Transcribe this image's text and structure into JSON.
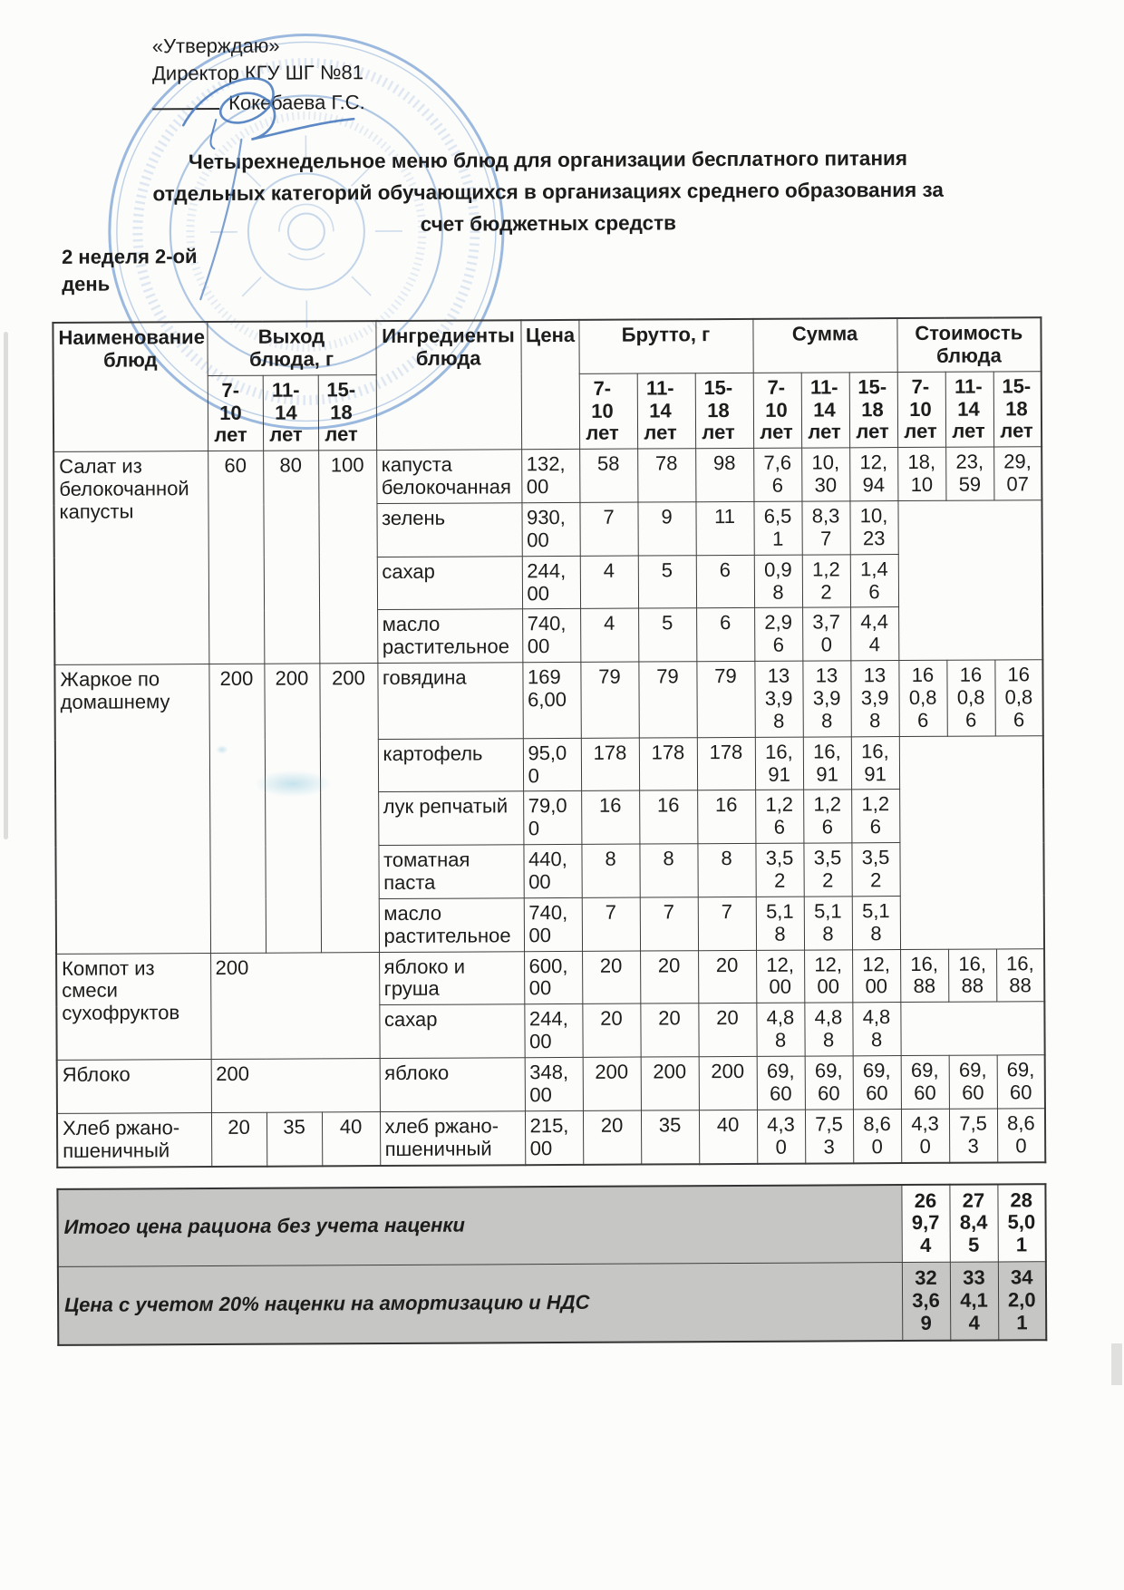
{
  "approval": {
    "quote": "«Утверждаю»",
    "director": "Директор КГУ ШГ №81",
    "signer": "Кокебаева Г.С."
  },
  "title": "Четырехнедельное меню блюд для организации бесплатного питания отдельных категорий обучающихся в организациях среднего образования за счет бюджетных средств",
  "week_day": "2 неделя 2-ой день",
  "table": {
    "headers": {
      "dish": "Наименование блюд",
      "output": "Выход блюда, г",
      "ingredients": "Ингредиенты блюда",
      "price": "Цена",
      "brutto": "Брутто, г",
      "sum": "Сумма",
      "cost": "Стоимость блюда",
      "age_groups": [
        "7-10 лет",
        "11-14 лет",
        "15-18 лет"
      ]
    },
    "dishes": [
      {
        "name": "Салат из белокочанной капусты",
        "output": [
          "60",
          "80",
          "100"
        ],
        "output_merged": false,
        "cost": [
          "18,10",
          "23,59",
          "29,07"
        ],
        "ingredients": [
          {
            "name": "капуста белокочанная",
            "price": "132,00",
            "brutto": [
              "58",
              "78",
              "98"
            ],
            "sum": [
              "7,66",
              "10,30",
              "12,94"
            ]
          },
          {
            "name": "зелень",
            "price": "930,00",
            "brutto": [
              "7",
              "9",
              "11"
            ],
            "sum": [
              "6,51",
              "8,37",
              "10,23"
            ]
          },
          {
            "name": "сахар",
            "price": "244,00",
            "brutto": [
              "4",
              "5",
              "6"
            ],
            "sum": [
              "0,98",
              "1,22",
              "1,46"
            ]
          },
          {
            "name": "масло растительное",
            "price": "740,00",
            "brutto": [
              "4",
              "5",
              "6"
            ],
            "sum": [
              "2,96",
              "3,70",
              "4,44"
            ]
          }
        ]
      },
      {
        "name": "Жаркое по домашнему",
        "output": [
          "200",
          "200",
          "200"
        ],
        "output_merged": false,
        "cost": [
          "160,86",
          "160,86",
          "160,86"
        ],
        "ingredients": [
          {
            "name": "говядина",
            "price": "1696,00",
            "brutto": [
              "79",
              "79",
              "79"
            ],
            "sum": [
              "133,98",
              "133,98",
              "133,98"
            ]
          },
          {
            "name": "картофель",
            "price": "95,00",
            "brutto": [
              "178",
              "178",
              "178"
            ],
            "sum": [
              "16,91",
              "16,91",
              "16,91"
            ]
          },
          {
            "name": "лук репчатый",
            "price": "79,00",
            "brutto": [
              "16",
              "16",
              "16"
            ],
            "sum": [
              "1,26",
              "1,26",
              "1,26"
            ]
          },
          {
            "name": "томатная паста",
            "price": "440,00",
            "brutto": [
              "8",
              "8",
              "8"
            ],
            "sum": [
              "3,52",
              "3,52",
              "3,52"
            ]
          },
          {
            "name": "масло растительное",
            "price": "740,00",
            "brutto": [
              "7",
              "7",
              "7"
            ],
            "sum": [
              "5,18",
              "5,18",
              "5,18"
            ]
          }
        ]
      },
      {
        "name": "Компот из смеси сухофруктов",
        "output": [
          "200"
        ],
        "output_merged": true,
        "cost": [
          "16,88",
          "16,88",
          "16,88"
        ],
        "ingredients": [
          {
            "name": "яблоко и груша",
            "price": "600,00",
            "brutto": [
              "20",
              "20",
              "20"
            ],
            "sum": [
              "12,00",
              "12,00",
              "12,00"
            ]
          },
          {
            "name": "сахар",
            "price": "244,00",
            "brutto": [
              "20",
              "20",
              "20"
            ],
            "sum": [
              "4,88",
              "4,88",
              "4,88"
            ]
          }
        ]
      },
      {
        "name": "Яблоко",
        "output": [
          "200"
        ],
        "output_merged": true,
        "cost": [
          "69,60",
          "69,60",
          "69,60"
        ],
        "ingredients": [
          {
            "name": "яблоко",
            "price": "348,00",
            "brutto": [
              "200",
              "200",
              "200"
            ],
            "sum": [
              "69,60",
              "69,60",
              "69,60"
            ]
          }
        ]
      },
      {
        "name": "Хлеб ржано-пшеничный",
        "output": [
          "20",
          "35",
          "40"
        ],
        "output_merged": false,
        "cost": [
          "4,30",
          "7,53",
          "8,60"
        ],
        "ingredients": [
          {
            "name": "хлеб ржано-пшеничный",
            "price": "215,00",
            "brutto": [
              "20",
              "35",
              "40"
            ],
            "sum": [
              "4,30",
              "7,53",
              "8,60"
            ]
          }
        ]
      }
    ],
    "totals": [
      {
        "label": "Итого цена рациона без учета наценки",
        "values": [
          "269,74",
          "278,45",
          "285,01"
        ]
      },
      {
        "label": "Цена с учетом 20% наценки на амортизацию и НДС",
        "values": [
          "323,69",
          "334,14",
          "342,01"
        ]
      }
    ]
  }
}
